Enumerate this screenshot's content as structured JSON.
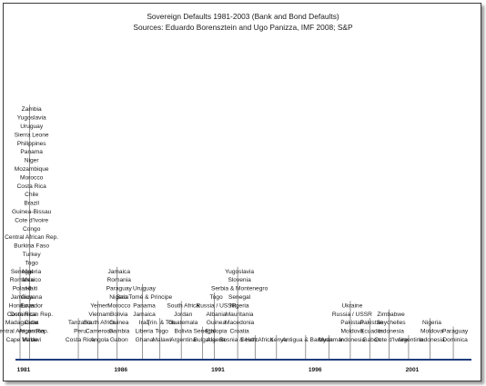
{
  "chart_data": {
    "type": "timeline",
    "title": "Sovereign Defaults 1981-2003 (Bank and Bond Defaults)",
    "subtitle": "Sources: Eduardo Borensztein and Ugo Panizza, IMF 2008; S&P",
    "x_range": [
      1981,
      2004
    ],
    "ticks": [
      "1981",
      "1986",
      "1991",
      "1996",
      "2001"
    ],
    "colors": {
      "axis": "#1f3d7a",
      "text": "#1a1a1a",
      "leader": "#6a6a6a"
    },
    "groups": [
      {
        "year": 1981.0,
        "labels": [
          "Senegal",
          "Romania",
          "Poland",
          "Jamaica",
          "Honduras",
          "Costa Rica",
          "Madagascar",
          "Central African Rep.",
          "Cape Verde"
        ]
      },
      {
        "year": 1981.5,
        "labels": [
          "Zambia",
          "Yugoslavia",
          "Uruguay",
          "Sierra Leone",
          "Philippines",
          "Panama",
          "Niger",
          "Mozambique",
          "Morocco",
          "Costa Rica",
          "Chile",
          "Brazil",
          "Guinea-Bissau",
          "Cote d'Ivoire",
          "Congo",
          "Central African Rep.",
          "Burkina Faso",
          "Turkey",
          "Togo",
          "Nigeria",
          "Mexico",
          "Haiti",
          "Guyana",
          "Ecuador",
          "Dominican Rep.",
          "Cuba",
          "Argentina",
          "Malawi"
        ]
      },
      {
        "year": 1984.0,
        "labels": [
          "Tanzania",
          "Peru",
          "Costa Rica"
        ]
      },
      {
        "year": 1985.0,
        "labels": [
          "Yemen",
          "Vietnam",
          "South Africa",
          "Cameroon",
          "Angola"
        ]
      },
      {
        "year": 1986.0,
        "labels": [
          "Jamaica",
          "Romania",
          "Paraguay",
          "Nigeria",
          "Morocco",
          "Bolivia",
          "Guinea",
          "Gambia",
          "Gabon"
        ]
      },
      {
        "year": 1987.3,
        "labels": [
          "Uruguay",
          "Sao Tomé & Principe",
          "Panama",
          "Jamaica",
          "Iraq",
          "Liberia",
          "Ghana"
        ]
      },
      {
        "year": 1988.2,
        "labels": [
          "Trin. & Tob.",
          "Togo",
          "Malawi"
        ]
      },
      {
        "year": 1989.3,
        "labels": [
          "South Africa",
          "Jordan",
          "Guatemala",
          "Bolivia",
          "Argentina"
        ]
      },
      {
        "year": 1990.4,
        "labels": [
          "Senegal",
          "Bulgaria"
        ]
      },
      {
        "year": 1991.0,
        "labels": [
          "Togo",
          "Russia / USSR",
          "Albania",
          "Guinea",
          "Ethiopia",
          "Algeria"
        ]
      },
      {
        "year": 1992.2,
        "labels": [
          "Yugoslavia",
          "Slovenia",
          "Serbia & Montenegro",
          "Senegal",
          "Nigeria",
          "Mauritania",
          "Macedonia",
          "Croatia",
          "Bosnia & Herz."
        ]
      },
      {
        "year": 1993.1,
        "labels": [
          "South Africa"
        ]
      },
      {
        "year": 1994.2,
        "labels": [
          "Kenya"
        ]
      },
      {
        "year": 1995.7,
        "labels": [
          "Antigua & Barbuda"
        ]
      },
      {
        "year": 1996.9,
        "labels": [
          "Myanmar"
        ]
      },
      {
        "year": 1998.0,
        "labels": [
          "Ukraine",
          "Russia / USSR",
          "Pakistan",
          "Moldova",
          "Indonesia"
        ]
      },
      {
        "year": 1999.0,
        "labels": [
          "Pakistan",
          "Ecuador",
          "Gabon"
        ]
      },
      {
        "year": 2000.0,
        "labels": [
          "Zimbabwe",
          "Seychelles",
          "Indonesia",
          "Cote d'Ivoire"
        ]
      },
      {
        "year": 2001.0,
        "labels": [
          "Argentina"
        ]
      },
      {
        "year": 2002.1,
        "labels": [
          "Nigeria",
          "Moldova",
          "Indonesia"
        ]
      },
      {
        "year": 2003.3,
        "labels": [
          "Paraguay",
          "Dominica"
        ]
      }
    ]
  }
}
